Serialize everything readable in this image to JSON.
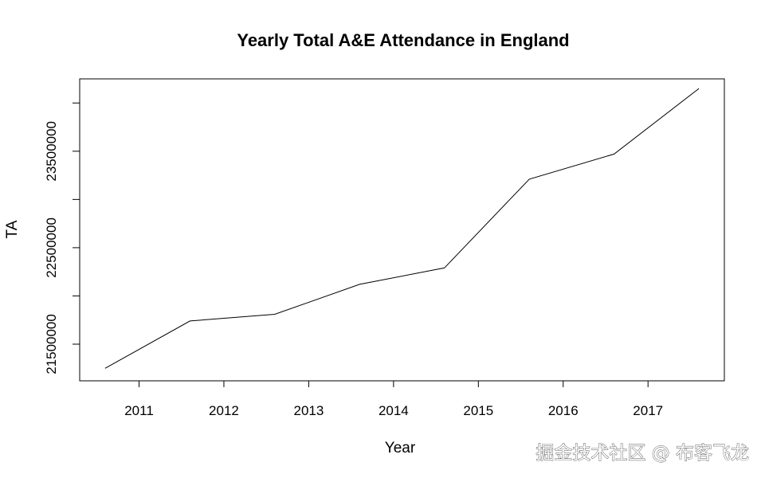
{
  "chart_data": {
    "type": "line",
    "title": "Yearly Total A&E Attendance in England",
    "xlabel": "Year",
    "ylabel": "TA",
    "x": [
      2010.6,
      2011.6,
      2012.6,
      2013.6,
      2014.6,
      2015.6,
      2016.6,
      2017.6
    ],
    "values": [
      21250000,
      21740000,
      21810000,
      22120000,
      22290000,
      23210000,
      23470000,
      24150000
    ],
    "xlim": [
      2010.3,
      2017.9
    ],
    "ylim": [
      21120000,
      24250000
    ],
    "x_ticks": [
      2011,
      2012,
      2013,
      2014,
      2015,
      2016,
      2017
    ],
    "x_tick_labels": [
      "2011",
      "2012",
      "2013",
      "2014",
      "2015",
      "2016",
      "2017"
    ],
    "y_ticks": [
      21500000,
      22000000,
      22500000,
      23000000,
      23500000,
      24000000
    ],
    "y_tick_labels": [
      "21500000",
      "",
      "22500000",
      "",
      "23500000",
      ""
    ],
    "grid": false,
    "line_color": "#000000"
  },
  "watermark": "掘金技术社区 @ 布客飞龙"
}
